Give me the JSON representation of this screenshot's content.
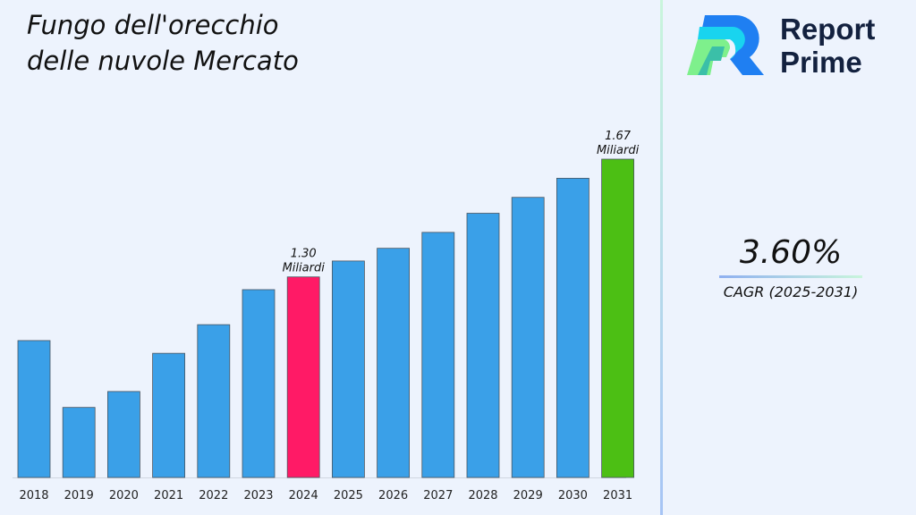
{
  "title_line1": "Fungo dell'orecchio",
  "title_line2": "delle nuvole Mercato",
  "logo": {
    "line1": "Report",
    "line2": "Prime"
  },
  "cagr": {
    "value": "3.60%",
    "label": "CAGR (2025-2031)"
  },
  "colors": {
    "default": "#3aa0e8",
    "highlight_current": "#ff1a66",
    "highlight_final": "#4cbf14"
  },
  "chart_data": {
    "type": "bar",
    "categories": [
      "2018",
      "2019",
      "2020",
      "2021",
      "2022",
      "2023",
      "2024",
      "2025",
      "2026",
      "2027",
      "2028",
      "2029",
      "2030",
      "2031"
    ],
    "values": [
      1.1,
      0.89,
      0.94,
      1.06,
      1.15,
      1.26,
      1.3,
      1.35,
      1.39,
      1.44,
      1.5,
      1.55,
      1.61,
      1.67
    ],
    "highlight": {
      "2024": "#ff1a66",
      "2031": "#4cbf14"
    },
    "data_labels": {
      "2024": [
        "1.30",
        "Miliardi"
      ],
      "2031": [
        "1.67",
        "Miliardi"
      ]
    },
    "ylim": [
      0.67,
      1.67
    ],
    "grid": false,
    "title": "",
    "xlabel": "",
    "ylabel": ""
  }
}
